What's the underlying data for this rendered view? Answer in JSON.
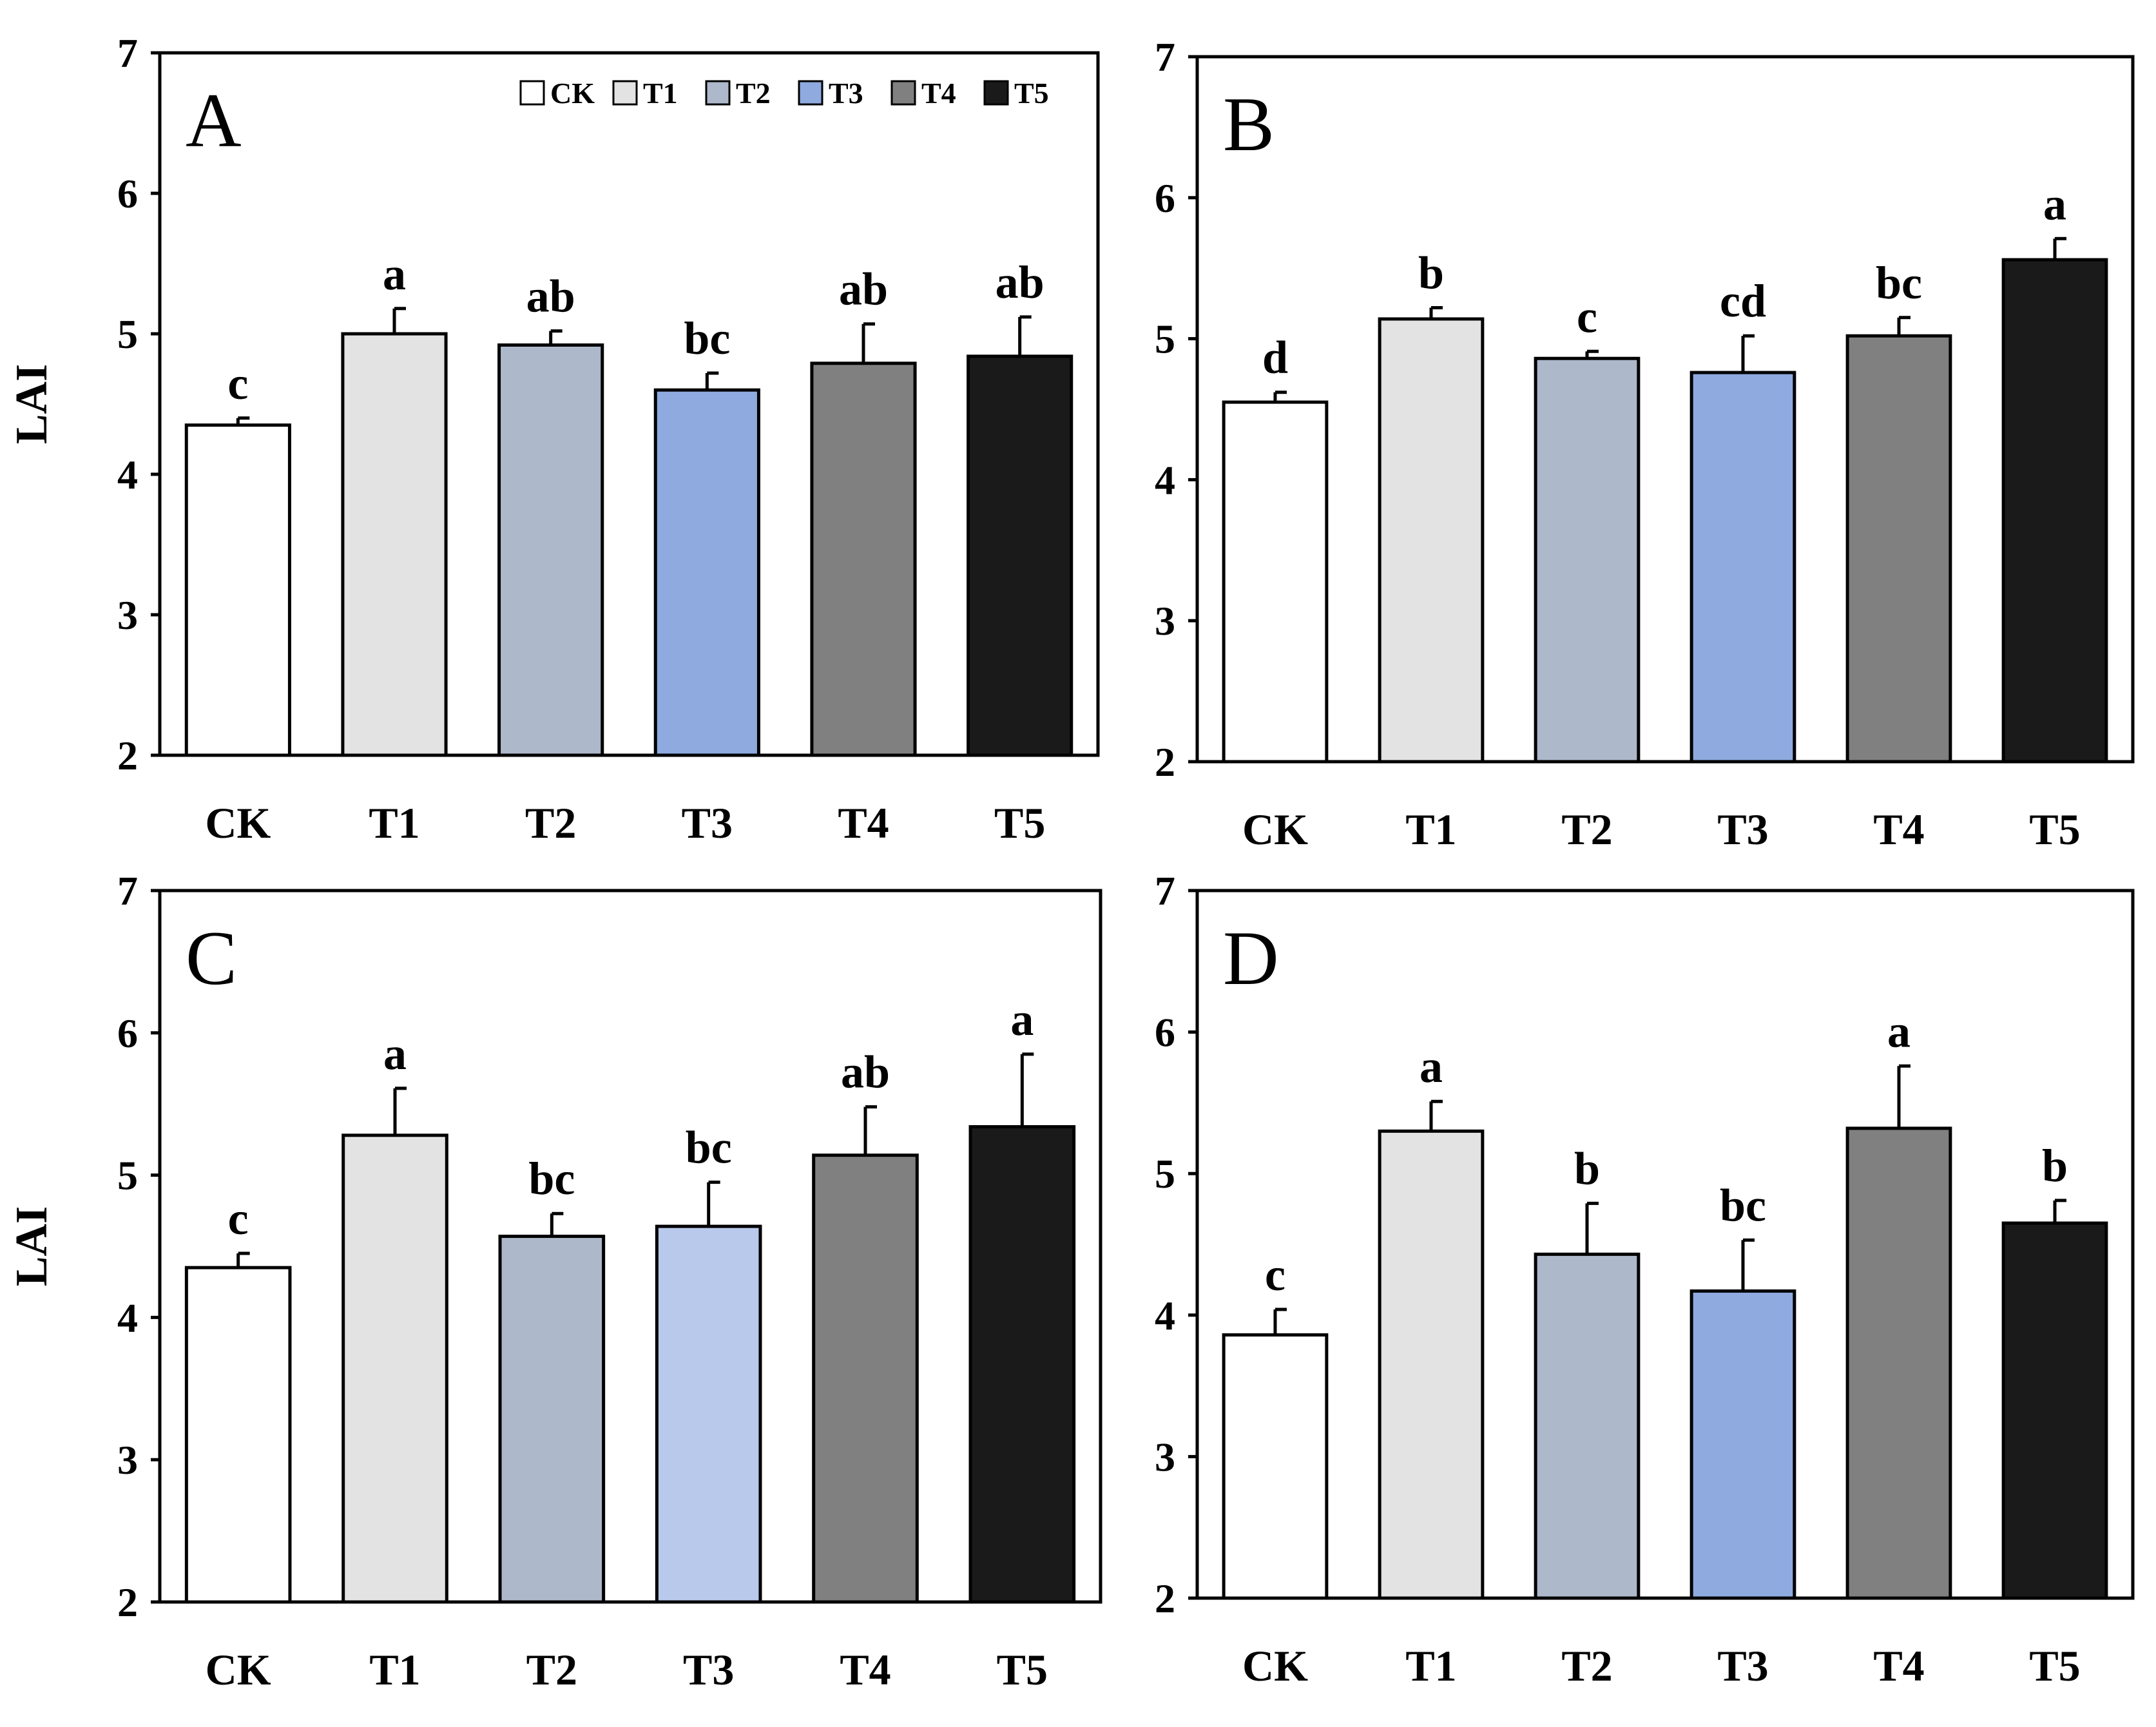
{
  "chart_data": [
    {
      "type": "bar",
      "panel": "A",
      "ylabel": "LAI",
      "ylim": [
        2,
        7
      ],
      "yticks": [
        2,
        3,
        4,
        5,
        6,
        7
      ],
      "categories": [
        "CK",
        "T1",
        "T2",
        "T3",
        "T4",
        "T5"
      ],
      "values": [
        4.35,
        5.0,
        4.92,
        4.6,
        4.79,
        4.84
      ],
      "errors": [
        0.05,
        0.18,
        0.1,
        0.12,
        0.28,
        0.28
      ],
      "significance": [
        "c",
        "a",
        "ab",
        "bc",
        "ab",
        "ab"
      ],
      "colors": [
        "#ffffff",
        "#e3e3e3",
        "#adb8cb",
        "#8eaadf",
        "#808080",
        "#1a1a1a"
      ],
      "legend": {
        "position": "top-right",
        "entries": [
          {
            "label": "CK",
            "color": "#ffffff"
          },
          {
            "label": "T1",
            "color": "#e3e3e3"
          },
          {
            "label": "T2",
            "color": "#adb8cb"
          },
          {
            "label": "T3",
            "color": "#8eaadf"
          },
          {
            "label": "T4",
            "color": "#808080"
          },
          {
            "label": "T5",
            "color": "#1a1a1a"
          }
        ]
      }
    },
    {
      "type": "bar",
      "panel": "B",
      "ylabel": "",
      "ylim": [
        2,
        7
      ],
      "yticks": [
        2,
        3,
        4,
        5,
        6,
        7
      ],
      "categories": [
        "CK",
        "T1",
        "T2",
        "T3",
        "T4",
        "T5"
      ],
      "values": [
        4.55,
        5.14,
        4.86,
        4.76,
        5.02,
        5.56
      ],
      "errors": [
        0.07,
        0.08,
        0.05,
        0.26,
        0.13,
        0.15
      ],
      "significance": [
        "d",
        "b",
        "c",
        "cd",
        "bc",
        "a"
      ],
      "colors": [
        "#ffffff",
        "#e3e3e3",
        "#adb8cb",
        "#8eaadf",
        "#808080",
        "#1a1a1a"
      ]
    },
    {
      "type": "bar",
      "panel": "C",
      "ylabel": "LAI",
      "ylim": [
        2,
        7
      ],
      "yticks": [
        2,
        3,
        4,
        5,
        6,
        7
      ],
      "categories": [
        "CK",
        "T1",
        "T2",
        "T3",
        "T4",
        "T5"
      ],
      "values": [
        4.35,
        5.28,
        4.57,
        4.64,
        5.14,
        5.34
      ],
      "errors": [
        0.1,
        0.33,
        0.16,
        0.31,
        0.34,
        0.51
      ],
      "significance": [
        "c",
        "a",
        "bc",
        "bc",
        "ab",
        "a"
      ],
      "colors": [
        "#ffffff",
        "#e3e3e3",
        "#adb8cb",
        "#b8c9ec",
        "#808080",
        "#1a1a1a"
      ]
    },
    {
      "type": "bar",
      "panel": "D",
      "ylabel": "",
      "ylim": [
        2,
        7
      ],
      "yticks": [
        2,
        3,
        4,
        5,
        6,
        7
      ],
      "categories": [
        "CK",
        "T1",
        "T2",
        "T3",
        "T4",
        "T5"
      ],
      "values": [
        3.86,
        5.3,
        4.43,
        4.17,
        5.32,
        4.65
      ],
      "errors": [
        0.18,
        0.21,
        0.36,
        0.36,
        0.44,
        0.16
      ],
      "significance": [
        "c",
        "a",
        "b",
        "bc",
        "a",
        "b"
      ],
      "colors": [
        "#ffffff",
        "#e3e3e3",
        "#adb8cb",
        "#8eaadf",
        "#808080",
        "#1a1a1a"
      ]
    }
  ]
}
